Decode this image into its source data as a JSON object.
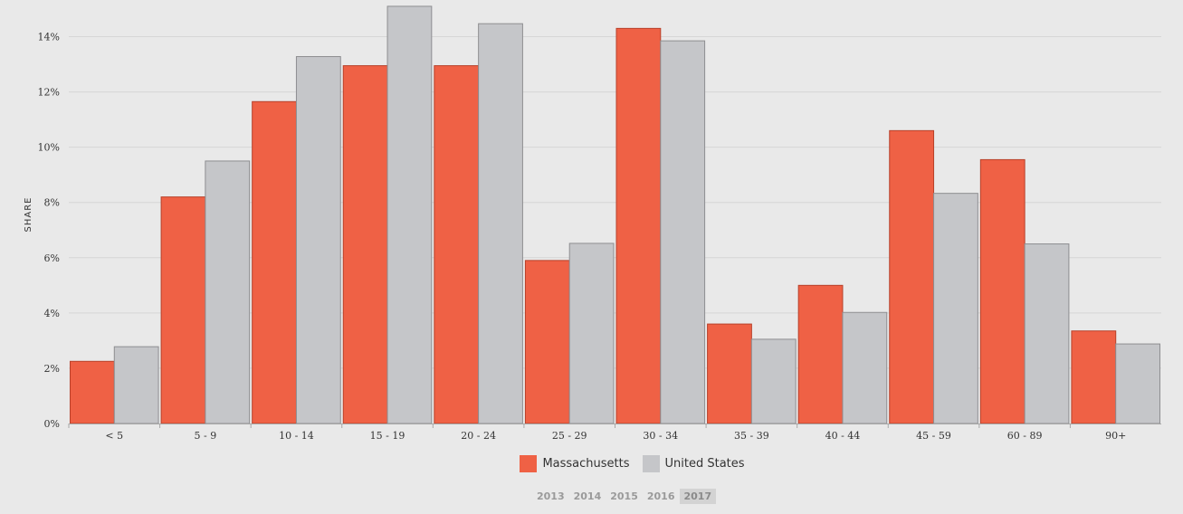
{
  "chart_data": {
    "type": "bar",
    "title": "",
    "xlabel": "",
    "ylabel": "SHARE",
    "ylim": [
      0,
      15
    ],
    "yticks": [
      0,
      2,
      4,
      6,
      8,
      10,
      12,
      14
    ],
    "ytick_suffix": "%",
    "grid": true,
    "legend_position": "bottom-center",
    "categories": [
      "< 5",
      "5 - 9",
      "10 - 14",
      "15 - 19",
      "20 - 24",
      "25 - 29",
      "30 - 34",
      "35 - 39",
      "40 - 44",
      "45 - 59",
      "60 - 89",
      "90+"
    ],
    "series": [
      {
        "name": "Massachusetts",
        "color": "#ef6145",
        "values": [
          2.25,
          8.2,
          11.65,
          12.95,
          12.95,
          5.9,
          14.3,
          3.6,
          5.0,
          10.6,
          9.55,
          3.35
        ]
      },
      {
        "name": "United States",
        "color": "#c5c6c9",
        "values": [
          2.78,
          9.5,
          13.28,
          15.1,
          14.47,
          6.52,
          13.85,
          3.05,
          4.02,
          8.33,
          6.5,
          2.88
        ]
      }
    ]
  },
  "years": {
    "items": [
      "2013",
      "2014",
      "2015",
      "2016",
      "2017"
    ],
    "selected": "2017"
  }
}
